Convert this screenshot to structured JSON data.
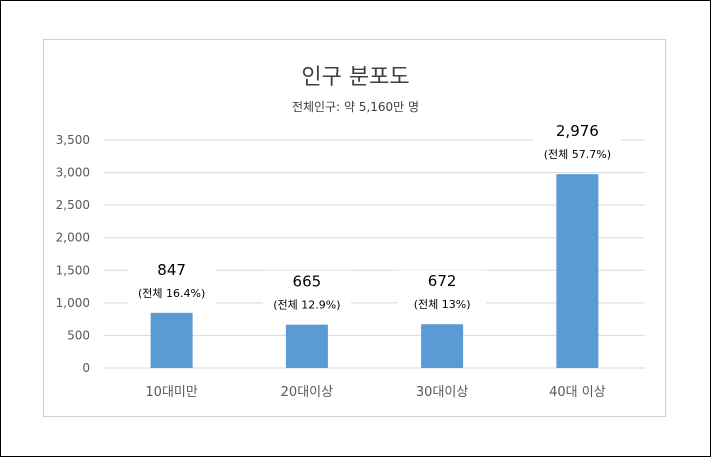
{
  "chart_data": {
    "type": "bar",
    "title": "인구 분포도",
    "subtitle": "전체인구: 약 5,160만 명",
    "categories": [
      "10대미만",
      "20대이상",
      "30대이상",
      "40대 이상"
    ],
    "values": [
      847,
      665,
      672,
      2976
    ],
    "value_labels": [
      "847",
      "665",
      "672",
      "2,976"
    ],
    "share_labels": [
      "(전체 16.4%)",
      "(전체 12.9%)",
      "(전체 13%)",
      "(전체 57.7%)"
    ],
    "yticks": [
      "0",
      "500",
      "1,000",
      "1,500",
      "2,000",
      "2,500",
      "3,000",
      "3,500"
    ],
    "ylim": [
      0,
      3500
    ],
    "grid": true,
    "bar_color": "#5b9bd5",
    "grid_color": "#d9d9d9"
  }
}
